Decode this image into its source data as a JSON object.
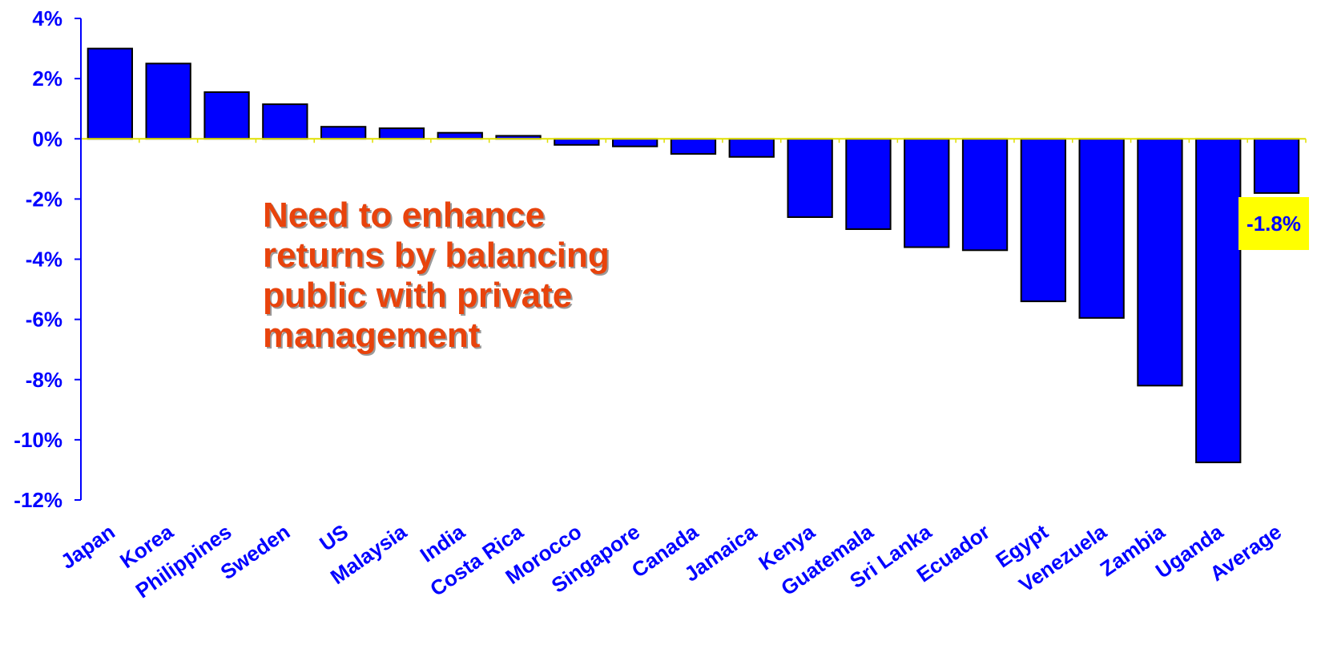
{
  "annotation": {
    "lines": [
      "Need to enhance",
      "returns by balancing",
      "public with  private",
      "management"
    ],
    "color": "#e8430c"
  },
  "callout": {
    "text": "-1.8%",
    "background": "#ffff00",
    "color": "#0000ff"
  },
  "chart_data": {
    "type": "bar",
    "title": "",
    "xlabel": "",
    "ylabel": "",
    "ylim": [
      -12,
      4
    ],
    "yticks": [
      4,
      2,
      0,
      -2,
      -4,
      -6,
      -8,
      -10,
      -12
    ],
    "ytick_labels": [
      "4%",
      "2%",
      "0%",
      "-2%",
      "-4%",
      "-6%",
      "-8%",
      "-10%",
      "-12%"
    ],
    "categories": [
      "Japan",
      "Korea",
      "Philippines",
      "Sweden",
      "US",
      "Malaysia",
      "India",
      "Costa Rica",
      "Morocco",
      "Singapore",
      "Canada",
      "Jamaica",
      "Kenya",
      "Guatemala",
      "Sri Lanka",
      "Ecuador",
      "Egypt",
      "Venezuela",
      "Zambia",
      "Uganda",
      "Average"
    ],
    "values": [
      3.0,
      2.5,
      1.55,
      1.15,
      0.4,
      0.35,
      0.2,
      0.1,
      -0.2,
      -0.25,
      -0.5,
      -0.6,
      -2.6,
      -3.0,
      -3.6,
      -3.7,
      -5.4,
      -5.95,
      -8.2,
      -10.75,
      -1.8
    ],
    "bar_color": "#0000ff",
    "axis_color": "#0000ff",
    "zero_line_color": "#e0e000",
    "legend": "none",
    "grid": false
  }
}
